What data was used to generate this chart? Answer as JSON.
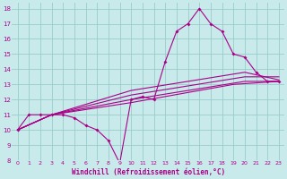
{
  "xlabel": "Windchill (Refroidissement éolien,°C)",
  "xlim": [
    -0.5,
    23.5
  ],
  "ylim": [
    8,
    18.4
  ],
  "yticks": [
    8,
    9,
    10,
    11,
    12,
    13,
    14,
    15,
    16,
    17,
    18
  ],
  "xticks": [
    0,
    1,
    2,
    3,
    4,
    5,
    6,
    7,
    8,
    9,
    10,
    11,
    12,
    13,
    14,
    15,
    16,
    17,
    18,
    19,
    20,
    21,
    22,
    23
  ],
  "bg_color": "#c8eaea",
  "line_color": "#aa0088",
  "grid_color": "#99cccc",
  "lines": [
    {
      "x": [
        0,
        1,
        2,
        3,
        4,
        5,
        6,
        7,
        8,
        9,
        10,
        11,
        12,
        13,
        14,
        15,
        16,
        17,
        18,
        19,
        20,
        21,
        22,
        23
      ],
      "y": [
        10.0,
        11.0,
        11.0,
        11.0,
        11.0,
        10.8,
        10.3,
        10.0,
        9.3,
        7.8,
        12.0,
        12.2,
        12.0,
        14.5,
        16.5,
        17.0,
        18.0,
        17.0,
        16.5,
        15.0,
        14.8,
        13.8,
        13.2,
        13.2
      ],
      "markers": true
    },
    {
      "x": [
        0,
        3,
        10,
        19,
        23
      ],
      "y": [
        10.0,
        11.0,
        11.8,
        13.0,
        13.2
      ],
      "markers": false
    },
    {
      "x": [
        0,
        3,
        10,
        20,
        23
      ],
      "y": [
        10.0,
        11.0,
        12.0,
        13.2,
        13.2
      ],
      "markers": false
    },
    {
      "x": [
        0,
        3,
        10,
        20,
        23
      ],
      "y": [
        10.0,
        11.0,
        12.3,
        13.5,
        13.5
      ],
      "markers": false
    },
    {
      "x": [
        0,
        3,
        10,
        20,
        23
      ],
      "y": [
        10.0,
        11.0,
        12.6,
        13.8,
        13.3
      ],
      "markers": false
    }
  ]
}
